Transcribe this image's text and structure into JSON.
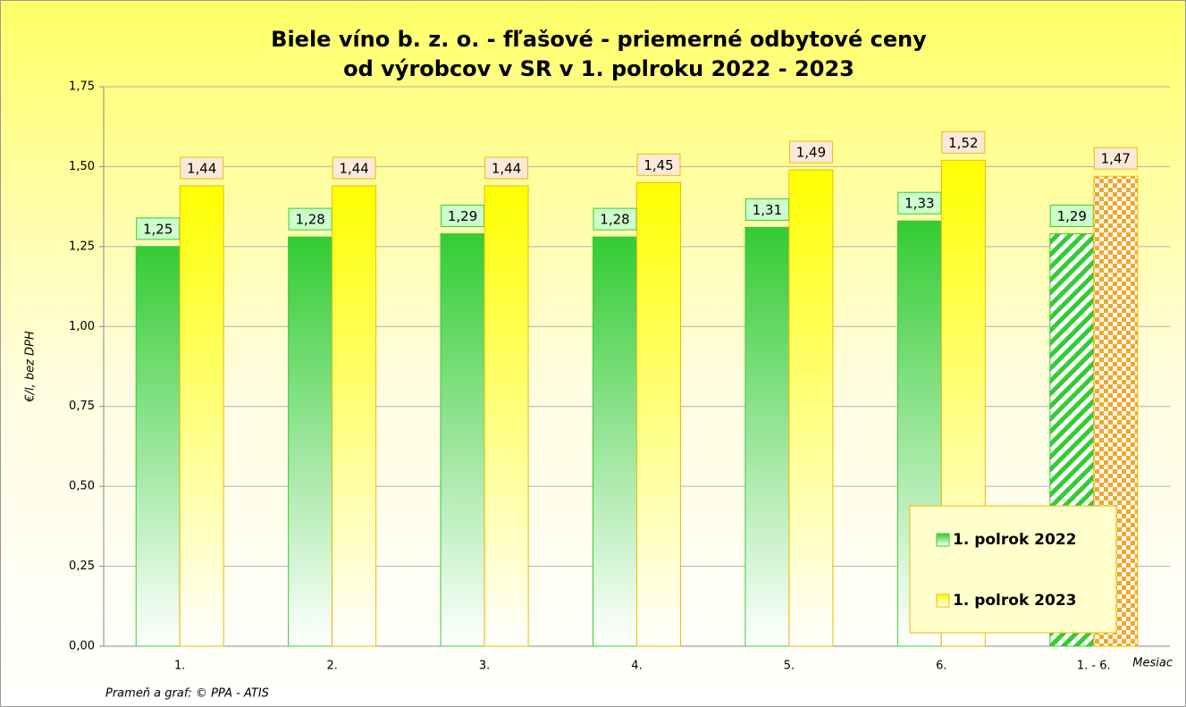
{
  "chart_data": {
    "type": "bar",
    "title": [
      "Biele víno b. z. o. - fľašové - priemerné odbytové ceny",
      "od výrobcov v SR v 1. polroku 2022 - 2023"
    ],
    "ylabel": "€/l, bez DPH",
    "xlabel": "Mesiac",
    "source": "Prameň a graf: © PPA - ATIS",
    "categories": [
      "1.",
      "2.",
      "3.",
      "4.",
      "5.",
      "6.",
      "1. - 6."
    ],
    "series": [
      {
        "name": "1. polrok 2022",
        "color": "#33cc33",
        "values": [
          1.25,
          1.28,
          1.29,
          1.28,
          1.31,
          1.33,
          1.29
        ],
        "value_labels": [
          "1,25",
          "1,28",
          "1,29",
          "1,28",
          "1,31",
          "1,33",
          "1,29"
        ]
      },
      {
        "name": "1. polrok 2023",
        "color": "#ffff00",
        "values": [
          1.44,
          1.44,
          1.44,
          1.45,
          1.49,
          1.52,
          1.47
        ],
        "value_labels": [
          "1,44",
          "1,44",
          "1,44",
          "1,45",
          "1,49",
          "1,52",
          "1,47"
        ]
      }
    ],
    "ylim": [
      0,
      1.75
    ],
    "yticks": [
      {
        "value": 0,
        "label": "0,00"
      },
      {
        "value": 0.25,
        "label": "0,25"
      },
      {
        "value": 0.5,
        "label": "0,50"
      },
      {
        "value": 0.75,
        "label": "0,75"
      },
      {
        "value": 1,
        "label": "1,00"
      },
      {
        "value": 1.25,
        "label": "1,25"
      },
      {
        "value": 1.5,
        "label": "1,50"
      },
      {
        "value": 1.75,
        "label": "1,75"
      }
    ],
    "grid": true,
    "legend": "lower right"
  }
}
